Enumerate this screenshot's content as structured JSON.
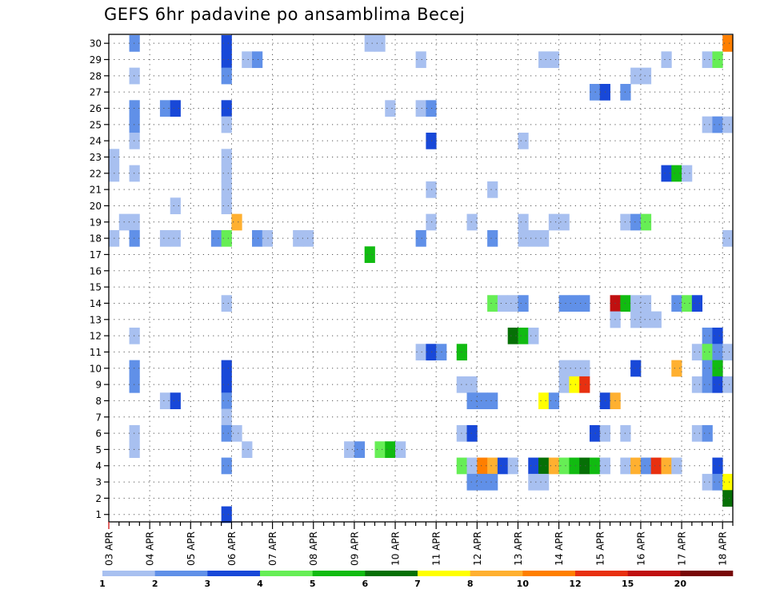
{
  "chart_data": {
    "type": "heatmap",
    "title": "GEFS 6hr padavine po ansamblima Becej",
    "xlabel": "",
    "ylabel": "",
    "x_tick_labels": [
      "03 APR",
      "04 APR",
      "05 APR",
      "06 APR",
      "07 APR",
      "08 APR",
      "09 APR",
      "10 APR",
      "11 APR",
      "12 APR",
      "13 APR",
      "14 APR",
      "15 APR",
      "16 APR",
      "17 APR",
      "18 APR"
    ],
    "x_step_count": 61,
    "y_range": [
      1,
      30
    ],
    "y_tick_labels": [
      "1",
      "2",
      "3",
      "4",
      "5",
      "6",
      "7",
      "8",
      "9",
      "10",
      "11",
      "12",
      "13",
      "14",
      "15",
      "16",
      "17",
      "18",
      "19",
      "20",
      "21",
      "22",
      "23",
      "24",
      "25",
      "26",
      "27",
      "28",
      "29",
      "30"
    ],
    "grid": true,
    "legend": {
      "placement": "bottom",
      "bins": [
        {
          "lower": 1,
          "color": "#a8c0f0"
        },
        {
          "lower": 2,
          "color": "#6090e8"
        },
        {
          "lower": 3,
          "color": "#1848d8"
        },
        {
          "lower": 4,
          "color": "#66ee55"
        },
        {
          "lower": 5,
          "color": "#11bb11"
        },
        {
          "lower": 6,
          "color": "#067006"
        },
        {
          "lower": 7,
          "color": "#ffff00"
        },
        {
          "lower": 8,
          "color": "#ffb030"
        },
        {
          "lower": 10,
          "color": "#ff7f00"
        },
        {
          "lower": 12,
          "color": "#e83010"
        },
        {
          "lower": 15,
          "color": "#c01010"
        },
        {
          "lower": 20,
          "color": "#780808"
        }
      ],
      "labels": [
        "1",
        "2",
        "3",
        "4",
        "5",
        "6",
        "7",
        "8",
        "10",
        "12",
        "15",
        "20"
      ]
    },
    "member_rows": [
      {
        "member": 30,
        "cells": [
          [
            2,
            2
          ],
          [
            11,
            3
          ],
          [
            25,
            1
          ],
          [
            26,
            1
          ],
          [
            60,
            10
          ]
        ]
      },
      {
        "member": 29,
        "cells": [
          [
            11,
            3
          ],
          [
            13,
            1
          ],
          [
            14,
            2
          ],
          [
            30,
            1
          ],
          [
            42,
            1
          ],
          [
            43,
            1
          ],
          [
            54,
            1
          ],
          [
            58,
            1
          ],
          [
            59,
            4
          ]
        ]
      },
      {
        "member": 28,
        "cells": [
          [
            2,
            1
          ],
          [
            11,
            2
          ],
          [
            51,
            1
          ],
          [
            52,
            1
          ]
        ]
      },
      {
        "member": 27,
        "cells": [
          [
            47,
            2
          ],
          [
            48,
            3
          ],
          [
            50,
            2
          ]
        ]
      },
      {
        "member": 26,
        "cells": [
          [
            2,
            2
          ],
          [
            5,
            2
          ],
          [
            6,
            3
          ],
          [
            11,
            3
          ],
          [
            27,
            1
          ],
          [
            30,
            1
          ],
          [
            31,
            2
          ]
        ]
      },
      {
        "member": 25,
        "cells": [
          [
            2,
            2
          ],
          [
            11,
            1
          ],
          [
            58,
            1
          ],
          [
            59,
            2
          ],
          [
            60,
            1
          ]
        ]
      },
      {
        "member": 24,
        "cells": [
          [
            2,
            1
          ],
          [
            31,
            3
          ],
          [
            40,
            1
          ]
        ]
      },
      {
        "member": 23,
        "cells": [
          [
            0,
            1
          ],
          [
            11,
            1
          ]
        ]
      },
      {
        "member": 22,
        "cells": [
          [
            0,
            1
          ],
          [
            2,
            1
          ],
          [
            11,
            1
          ],
          [
            54,
            3
          ],
          [
            55,
            5
          ],
          [
            56,
            1
          ]
        ]
      },
      {
        "member": 21,
        "cells": [
          [
            11,
            1
          ],
          [
            31,
            1
          ],
          [
            37,
            1
          ]
        ]
      },
      {
        "member": 20,
        "cells": [
          [
            6,
            1
          ],
          [
            11,
            1
          ]
        ]
      },
      {
        "member": 19,
        "cells": [
          [
            1,
            1
          ],
          [
            2,
            1
          ],
          [
            12,
            8
          ],
          [
            31,
            1
          ],
          [
            35,
            1
          ],
          [
            40,
            1
          ],
          [
            43,
            1
          ],
          [
            44,
            1
          ],
          [
            50,
            1
          ],
          [
            51,
            2
          ],
          [
            52,
            4
          ]
        ]
      },
      {
        "member": 18,
        "cells": [
          [
            0,
            1
          ],
          [
            2,
            2
          ],
          [
            5,
            1
          ],
          [
            6,
            1
          ],
          [
            10,
            2
          ],
          [
            11,
            4
          ],
          [
            14,
            2
          ],
          [
            15,
            1
          ],
          [
            18,
            1
          ],
          [
            19,
            1
          ],
          [
            30,
            2
          ],
          [
            37,
            2
          ],
          [
            40,
            1
          ],
          [
            41,
            1
          ],
          [
            42,
            1
          ],
          [
            60,
            1
          ]
        ]
      },
      {
        "member": 17,
        "cells": [
          [
            25,
            5
          ]
        ]
      },
      {
        "member": 14,
        "cells": [
          [
            11,
            1
          ],
          [
            37,
            4
          ],
          [
            38,
            1
          ],
          [
            39,
            1
          ],
          [
            40,
            2
          ],
          [
            44,
            2
          ],
          [
            45,
            2
          ],
          [
            46,
            2
          ],
          [
            49,
            15
          ],
          [
            50,
            5
          ],
          [
            51,
            1
          ],
          [
            52,
            1
          ],
          [
            55,
            2
          ],
          [
            56,
            4
          ],
          [
            57,
            3
          ]
        ]
      },
      {
        "member": 13,
        "cells": [
          [
            49,
            1
          ],
          [
            51,
            1
          ],
          [
            52,
            1
          ],
          [
            53,
            1
          ]
        ]
      },
      {
        "member": 12,
        "cells": [
          [
            2,
            1
          ],
          [
            39,
            6
          ],
          [
            40,
            5
          ],
          [
            41,
            1
          ],
          [
            58,
            2
          ],
          [
            59,
            3
          ]
        ]
      },
      {
        "member": 11,
        "cells": [
          [
            30,
            1
          ],
          [
            31,
            3
          ],
          [
            32,
            2
          ],
          [
            34,
            5
          ],
          [
            57,
            1
          ],
          [
            58,
            4
          ],
          [
            59,
            2
          ],
          [
            60,
            1
          ]
        ]
      },
      {
        "member": 10,
        "cells": [
          [
            2,
            2
          ],
          [
            11,
            3
          ],
          [
            44,
            1
          ],
          [
            45,
            1
          ],
          [
            46,
            1
          ],
          [
            51,
            3
          ],
          [
            55,
            8
          ],
          [
            58,
            2
          ],
          [
            59,
            5
          ]
        ]
      },
      {
        "member": 9,
        "cells": [
          [
            2,
            2
          ],
          [
            11,
            3
          ],
          [
            34,
            1
          ],
          [
            35,
            1
          ],
          [
            44,
            1
          ],
          [
            45,
            7
          ],
          [
            46,
            12
          ],
          [
            57,
            1
          ],
          [
            58,
            2
          ],
          [
            59,
            3
          ],
          [
            60,
            1
          ]
        ]
      },
      {
        "member": 8,
        "cells": [
          [
            5,
            1
          ],
          [
            6,
            3
          ],
          [
            11,
            2
          ],
          [
            35,
            2
          ],
          [
            36,
            2
          ],
          [
            37,
            2
          ],
          [
            42,
            7
          ],
          [
            43,
            2
          ],
          [
            48,
            3
          ],
          [
            49,
            8
          ]
        ]
      },
      {
        "member": 7,
        "cells": [
          [
            11,
            1
          ]
        ]
      },
      {
        "member": 6,
        "cells": [
          [
            2,
            1
          ],
          [
            11,
            2
          ],
          [
            12,
            1
          ],
          [
            34,
            1
          ],
          [
            35,
            3
          ],
          [
            47,
            3
          ],
          [
            48,
            1
          ],
          [
            50,
            1
          ],
          [
            57,
            1
          ],
          [
            58,
            2
          ]
        ]
      },
      {
        "member": 5,
        "cells": [
          [
            2,
            1
          ],
          [
            13,
            1
          ],
          [
            23,
            1
          ],
          [
            24,
            2
          ],
          [
            26,
            4
          ],
          [
            27,
            5
          ],
          [
            28,
            1
          ]
        ]
      },
      {
        "member": 4,
        "cells": [
          [
            11,
            2
          ],
          [
            34,
            4
          ],
          [
            35,
            1
          ],
          [
            36,
            10
          ],
          [
            37,
            8
          ],
          [
            38,
            3
          ],
          [
            39,
            1
          ],
          [
            41,
            3
          ],
          [
            42,
            6
          ],
          [
            43,
            8
          ],
          [
            44,
            4
          ],
          [
            45,
            5
          ],
          [
            46,
            6
          ],
          [
            47,
            5
          ],
          [
            48,
            1
          ],
          [
            50,
            1
          ],
          [
            51,
            8
          ],
          [
            52,
            2
          ],
          [
            53,
            12
          ],
          [
            54,
            8
          ],
          [
            55,
            1
          ],
          [
            59,
            3
          ]
        ]
      },
      {
        "member": 3,
        "cells": [
          [
            35,
            2
          ],
          [
            36,
            2
          ],
          [
            37,
            2
          ],
          [
            41,
            1
          ],
          [
            42,
            1
          ],
          [
            58,
            1
          ],
          [
            59,
            2
          ],
          [
            60,
            7
          ]
        ]
      },
      {
        "member": 2,
        "cells": [
          [
            60,
            6
          ]
        ]
      },
      {
        "member": 1,
        "cells": [
          [
            11,
            3
          ]
        ]
      }
    ]
  }
}
